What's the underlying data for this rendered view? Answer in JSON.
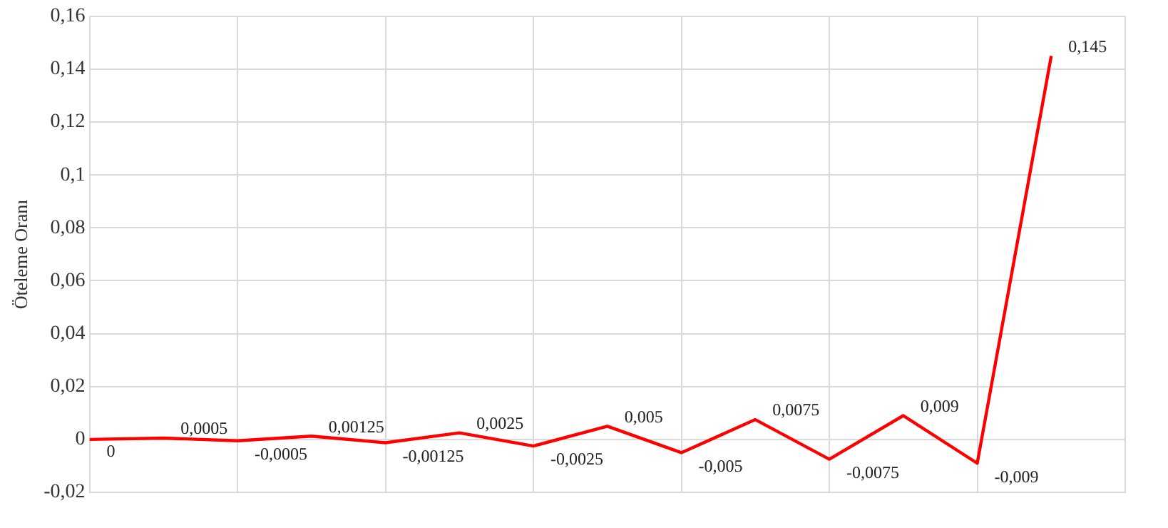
{
  "chart_data": {
    "type": "line",
    "ylabel": "Öteleme Oranı",
    "categories": [
      null,
      null,
      null,
      null,
      null,
      null,
      null,
      null,
      null,
      null,
      null,
      null,
      null,
      null
    ],
    "series": [
      {
        "color": "#ff0000",
        "values": [
          0,
          0.0005,
          -0.0005,
          0.00125,
          -0.00125,
          0.0025,
          -0.0025,
          0.005,
          -0.005,
          0.0075,
          -0.0075,
          0.009,
          -0.009,
          0.145
        ],
        "value_labels": [
          "0",
          "0,0005",
          "-0,0005",
          "0,00125",
          "-0,00125",
          "0,0025",
          "-0,0025",
          "0,005",
          "-0,005",
          "0,0075",
          "-0,0075",
          "0,009",
          "-0,009",
          "0,145"
        ]
      }
    ],
    "ylim": [
      -0.02,
      0.16
    ],
    "yticks": [
      {
        "value": -0.02,
        "label": "-0,02"
      },
      {
        "value": 0,
        "label": "0"
      },
      {
        "value": 0.02,
        "label": "0,02"
      },
      {
        "value": 0.04,
        "label": "0,04"
      },
      {
        "value": 0.06,
        "label": "0,06"
      },
      {
        "value": 0.08,
        "label": "0,08"
      },
      {
        "value": 0.1,
        "label": "0,1"
      },
      {
        "value": 0.12,
        "label": "0,12"
      },
      {
        "value": 0.14,
        "label": "0,14"
      },
      {
        "value": 0.16,
        "label": "0,16"
      }
    ],
    "grid": true,
    "marker": "none",
    "legend": false
  }
}
